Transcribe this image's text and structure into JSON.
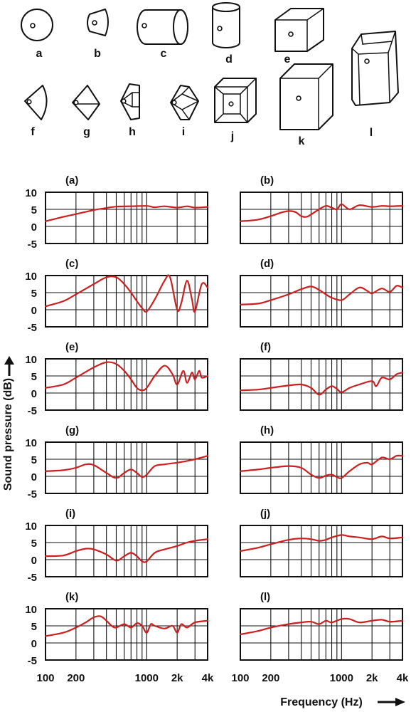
{
  "shapes": [
    {
      "key": "a",
      "label": "a",
      "icon": "sphere-icon"
    },
    {
      "key": "b",
      "label": "b",
      "icon": "truncated-cone-icon"
    },
    {
      "key": "c",
      "label": "c",
      "icon": "horizontal-cylinder-icon"
    },
    {
      "key": "d",
      "label": "d",
      "icon": "vertical-cylinder-icon"
    },
    {
      "key": "e",
      "label": "e",
      "icon": "cube-icon"
    },
    {
      "key": "f",
      "label": "f",
      "icon": "teardrop-icon"
    },
    {
      "key": "g",
      "label": "g",
      "icon": "diamond-icon"
    },
    {
      "key": "h",
      "label": "h",
      "icon": "faceted-wedge-icon"
    },
    {
      "key": "i",
      "label": "i",
      "icon": "faceted-hexagon-icon"
    },
    {
      "key": "j",
      "label": "j",
      "icon": "beveled-box-icon"
    },
    {
      "key": "k",
      "label": "k",
      "icon": "tall-box-icon"
    },
    {
      "key": "l",
      "label": "l",
      "icon": "chamfered-column-icon"
    }
  ],
  "chart_data": {
    "type": "line",
    "colors": {
      "curve": "#cc1f1f",
      "grid": "#111111"
    },
    "ylabel": "Sound pressure  (dB)",
    "xlabel": "Frequency  (Hz)",
    "x_scale": "log",
    "xlim": [
      100,
      4000
    ],
    "ylim": [
      -5,
      10
    ],
    "y_ticks": [
      "10",
      "5",
      "0",
      "-5"
    ],
    "y_tick_values": [
      10,
      5,
      0,
      -5
    ],
    "x_ticks": [
      {
        "label": "100",
        "value": 100
      },
      {
        "label": "200",
        "value": 200
      },
      {
        "label": "1000",
        "value": 1000
      },
      {
        "label": "2k",
        "value": 2000
      },
      {
        "label": "4k",
        "value": 4000
      }
    ],
    "x_grid_values": [
      200,
      300,
      400,
      500,
      600,
      700,
      800,
      900,
      1000,
      2000,
      3000
    ],
    "panels": [
      {
        "label": "(a)",
        "x": [
          100,
          150,
          200,
          300,
          400,
          500,
          700,
          1000,
          1200,
          1500,
          2000,
          2500,
          3000,
          4000
        ],
        "y": [
          1.5,
          2.8,
          3.6,
          4.8,
          5.4,
          5.8,
          5.9,
          6.0,
          5.6,
          5.9,
          5.5,
          5.9,
          5.5,
          5.7
        ]
      },
      {
        "label": "(b)",
        "x": [
          100,
          150,
          200,
          250,
          300,
          350,
          400,
          450,
          500,
          600,
          700,
          800,
          900,
          1000,
          1200,
          1500,
          2000,
          2500,
          3000,
          4000
        ],
        "y": [
          1.5,
          2.0,
          3.0,
          4.0,
          4.5,
          4.2,
          3.0,
          2.8,
          3.5,
          5.0,
          6.0,
          5.5,
          5.0,
          6.5,
          5.0,
          6.2,
          5.7,
          6.0,
          5.9,
          6.0
        ]
      },
      {
        "label": "(c)",
        "x": [
          100,
          150,
          200,
          300,
          400,
          500,
          600,
          700,
          800,
          900,
          1000,
          1200,
          1500,
          1700,
          2000,
          2200,
          2500,
          2800,
          3000,
          3500,
          4000
        ],
        "y": [
          1.0,
          2.5,
          4.5,
          7.5,
          9.5,
          9.5,
          7.5,
          5.0,
          2.5,
          0.5,
          -0.5,
          3.0,
          8.5,
          9.5,
          0.0,
          2.0,
          8.5,
          3.0,
          -0.5,
          7.5,
          6.5
        ]
      },
      {
        "label": "(d)",
        "x": [
          100,
          150,
          200,
          300,
          400,
          500,
          600,
          700,
          800,
          1000,
          1200,
          1500,
          1800,
          2000,
          2500,
          3000,
          3500,
          4000
        ],
        "y": [
          1.5,
          1.8,
          2.8,
          4.5,
          6.0,
          6.8,
          5.8,
          4.5,
          3.5,
          2.8,
          4.5,
          6.5,
          5.5,
          4.8,
          6.2,
          5.2,
          7.0,
          6.5
        ]
      },
      {
        "label": "(e)",
        "x": [
          100,
          150,
          200,
          300,
          400,
          500,
          600,
          700,
          800,
          900,
          1000,
          1200,
          1500,
          1800,
          2000,
          2300,
          2500,
          2800,
          3000,
          3300,
          3500,
          4000
        ],
        "y": [
          1.5,
          2.5,
          4.5,
          7.5,
          9.0,
          8.5,
          6.5,
          4.0,
          1.5,
          0.8,
          1.5,
          5.0,
          8.0,
          5.5,
          2.5,
          6.5,
          3.0,
          6.0,
          4.0,
          6.5,
          4.5,
          5.0
        ]
      },
      {
        "label": "(f)",
        "x": [
          100,
          150,
          200,
          300,
          400,
          500,
          600,
          700,
          800,
          900,
          1000,
          1200,
          1500,
          2000,
          2200,
          2500,
          3000,
          3500,
          4000
        ],
        "y": [
          0.8,
          1.0,
          1.5,
          2.2,
          2.5,
          1.5,
          -0.5,
          1.0,
          2.0,
          1.2,
          0.2,
          1.5,
          2.5,
          3.5,
          2.0,
          4.5,
          4.0,
          5.5,
          6.0
        ]
      },
      {
        "label": "(g)",
        "x": [
          100,
          150,
          200,
          250,
          300,
          400,
          500,
          600,
          700,
          800,
          900,
          1000,
          1200,
          1500,
          2000,
          2500,
          3000,
          3500,
          4000
        ],
        "y": [
          1.5,
          1.8,
          2.5,
          3.5,
          3.3,
          1.0,
          -0.5,
          1.0,
          2.0,
          1.0,
          -0.2,
          0.5,
          3.0,
          3.5,
          4.0,
          4.5,
          5.0,
          5.5,
          6.0
        ]
      },
      {
        "label": "(h)",
        "x": [
          100,
          150,
          200,
          300,
          400,
          500,
          600,
          700,
          800,
          900,
          1000,
          1200,
          1500,
          1800,
          2000,
          2500,
          3000,
          3500,
          4000
        ],
        "y": [
          1.5,
          2.0,
          2.5,
          3.0,
          2.5,
          0.5,
          -0.5,
          0.2,
          0.5,
          -0.2,
          -0.5,
          1.5,
          3.5,
          4.0,
          3.5,
          5.5,
          5.0,
          6.0,
          6.0
        ]
      },
      {
        "label": "(i)",
        "x": [
          100,
          150,
          200,
          250,
          300,
          400,
          500,
          600,
          700,
          800,
          900,
          1000,
          1200,
          1500,
          2000,
          2500,
          3000,
          3500,
          4000
        ],
        "y": [
          1.0,
          1.2,
          2.5,
          3.2,
          3.0,
          1.5,
          -0.3,
          1.0,
          2.0,
          1.0,
          -0.5,
          -0.5,
          2.0,
          3.0,
          4.0,
          5.0,
          5.5,
          5.8,
          6.0
        ]
      },
      {
        "label": "(j)",
        "x": [
          100,
          150,
          200,
          300,
          400,
          500,
          600,
          700,
          800,
          1000,
          1200,
          1500,
          2000,
          2500,
          3000,
          4000
        ],
        "y": [
          2.5,
          3.5,
          4.5,
          5.8,
          6.2,
          6.0,
          5.5,
          5.8,
          6.5,
          7.2,
          6.8,
          6.5,
          6.0,
          6.8,
          6.2,
          6.5
        ]
      },
      {
        "label": "(k)",
        "x": [
          100,
          150,
          200,
          250,
          300,
          350,
          400,
          450,
          500,
          600,
          700,
          800,
          900,
          1000,
          1100,
          1200,
          1500,
          1800,
          2000,
          2200,
          2500,
          3000,
          4000
        ],
        "y": [
          2.0,
          3.0,
          4.5,
          6.0,
          7.5,
          7.8,
          6.5,
          5.0,
          4.5,
          5.5,
          4.5,
          5.8,
          5.0,
          3.0,
          5.5,
          5.0,
          4.2,
          5.0,
          3.0,
          5.5,
          4.5,
          6.0,
          6.5
        ]
      },
      {
        "label": "(l)",
        "x": [
          100,
          150,
          200,
          300,
          400,
          500,
          600,
          700,
          800,
          1000,
          1200,
          1500,
          2000,
          2500,
          3000,
          4000
        ],
        "y": [
          2.5,
          3.5,
          4.5,
          5.5,
          6.0,
          6.2,
          5.5,
          6.5,
          6.0,
          7.0,
          7.0,
          6.0,
          6.5,
          6.8,
          6.2,
          6.5
        ]
      }
    ]
  }
}
